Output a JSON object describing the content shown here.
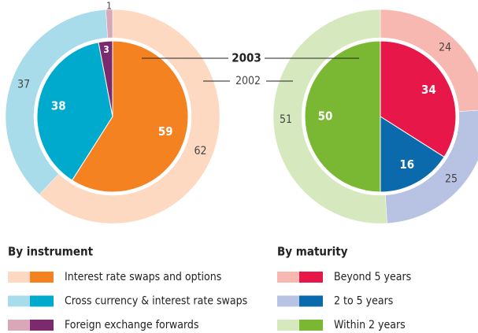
{
  "series_names": [
    "2003",
    "2002"
  ],
  "chart_data": [
    {
      "type": "pie",
      "title": "By instrument",
      "categories": [
        "Interest rate swaps and options",
        "Cross currency & interest rate swaps",
        "Foreign exchange forwards"
      ],
      "series": [
        {
          "colors": [
            "#f58220",
            "#00aacc",
            "#7b2a6e"
          ],
          "values": [
            59,
            38,
            3
          ]
        },
        {
          "colors": [
            "#fcd9c0",
            "#a8dcea",
            "#d9a8b8"
          ],
          "values": [
            62,
            37,
            1
          ]
        }
      ]
    },
    {
      "type": "pie",
      "title": "By maturity",
      "categories": [
        "Beyond 5 years",
        "2 to 5 years",
        "Within 2 years"
      ],
      "series": [
        {
          "colors": [
            "#e8174a",
            "#0a6aab",
            "#7ab833"
          ],
          "values": [
            34,
            16,
            50
          ]
        },
        {
          "colors": [
            "#f6b8b0",
            "#b8c2e2",
            "#d6e9be"
          ],
          "values": [
            24,
            25,
            51
          ]
        }
      ]
    }
  ]
}
